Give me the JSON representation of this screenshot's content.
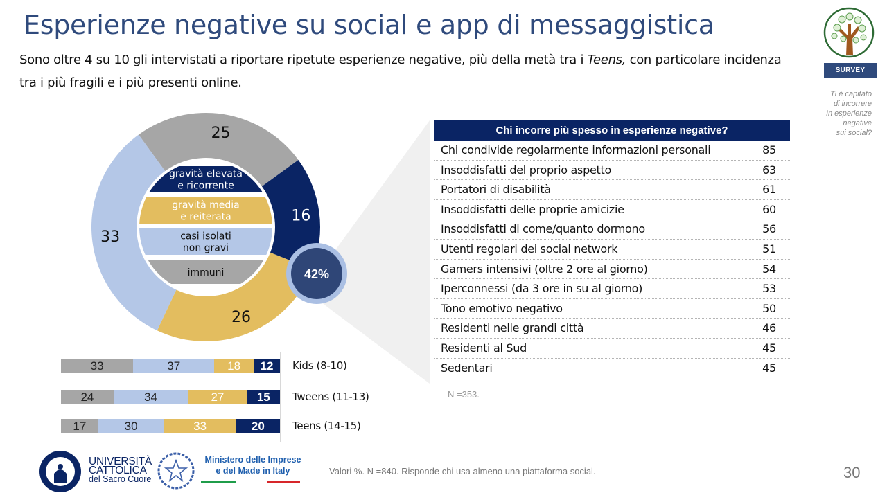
{
  "header": {
    "title": "Esperienze negative su social e app di messaggistica",
    "subtitle_part1": "Sono oltre 4 su 10  gli intervistati a riportare ripetute esperienze negative, più della metà tra i ",
    "subtitle_italic": "Teens,",
    "subtitle_part2": " con particolare incidenza tra i più fragili e i più presenti online."
  },
  "sidebar": {
    "badge": "SURVEY",
    "question_lines": [
      "Ti è capitato",
      "di incorrere",
      "In esperienze",
      "negative",
      "sui social?"
    ]
  },
  "colors": {
    "navy": "#0a2464",
    "gold": "#e3bd5f",
    "light_blue": "#b4c7e7",
    "gray": "#a6a6a6",
    "title_blue": "#2f4a7c",
    "callout_fill": "#2f4677",
    "callout_ring": "#aabfe3"
  },
  "chart_data": [
    {
      "type": "pie",
      "variant": "donut",
      "title": "",
      "categories": [
        "immuni",
        "gravità elevata e ricorrente",
        "gravità media e reiterata",
        "casi isolati non gravi"
      ],
      "values": [
        25,
        16,
        26,
        33
      ],
      "legend": [
        {
          "label_lines": [
            "gravità elevata",
            "e ricorrente"
          ],
          "color": "#0a2464",
          "text_color": "#ffffff"
        },
        {
          "label_lines": [
            "gravità media",
            "e reiterata"
          ],
          "color": "#e3bd5f",
          "text_color": "#ffffff"
        },
        {
          "label_lines": [
            "casi isolati",
            "non gravi"
          ],
          "color": "#b4c7e7",
          "text_color": "#111111"
        },
        {
          "label_lines": [
            "immuni"
          ],
          "color": "#a6a6a6",
          "text_color": "#111111"
        }
      ],
      "legend_placement": "center",
      "callout": "42%"
    },
    {
      "type": "bar",
      "orientation": "horizontal",
      "stacked": true,
      "categories": [
        "Kids (8-10)",
        "Tweens (11-13)",
        "Teens (14-15)"
      ],
      "series": [
        {
          "name": "immuni",
          "color": "#a6a6a6",
          "values": [
            33,
            24,
            17
          ]
        },
        {
          "name": "casi isolati non gravi",
          "color": "#b4c7e7",
          "values": [
            37,
            34,
            30
          ]
        },
        {
          "name": "gravità media e reiterata",
          "color": "#e3bd5f",
          "values": [
            18,
            27,
            33
          ]
        },
        {
          "name": "gravità elevata e ricorrente",
          "color": "#0a2464",
          "values": [
            12,
            15,
            20
          ]
        }
      ],
      "xlim": [
        0,
        100
      ]
    },
    {
      "type": "table",
      "title": "Chi incorre più spesso in esperienze negative?",
      "rows": [
        {
          "label": "Chi condivide regolarmente informazioni personali",
          "value": "85"
        },
        {
          "label": "Insoddisfatti del proprio aspetto",
          "value": "63"
        },
        {
          "label": "Portatori di disabilità",
          "value": "61"
        },
        {
          "label": "Insoddisfatti delle proprie amicizie",
          "value": "60"
        },
        {
          "label": "Insoddisfatti di come/quanto dormono",
          "value": "56"
        },
        {
          "label": "Utenti regolari dei social network",
          "value": "51"
        },
        {
          "label": "Gamers intensivi (oltre 2 ore al giorno)",
          "value": "54"
        },
        {
          "label": "Iperconnessi (da 3 ore in su al giorno)",
          "value": "53"
        },
        {
          "label": "Tono emotivo negativo",
          "value": "50"
        },
        {
          "label": "Residenti nelle grandi città",
          "value": "46"
        },
        {
          "label": "Residenti al Sud",
          "value": "45"
        },
        {
          "label": "Sedentari",
          "value": "45"
        }
      ],
      "note": "N =353."
    }
  ],
  "footer": {
    "note": "Valori %. N =840. Risponde chi usa almeno una piattaforma social.",
    "page_number": "30",
    "university_lines": [
      "UNIVERSITÀ",
      "CATTOLICA",
      "del Sacro Cuore"
    ],
    "ministry_lines": [
      "Ministero delle Imprese",
      "e del Made in Italy"
    ]
  }
}
